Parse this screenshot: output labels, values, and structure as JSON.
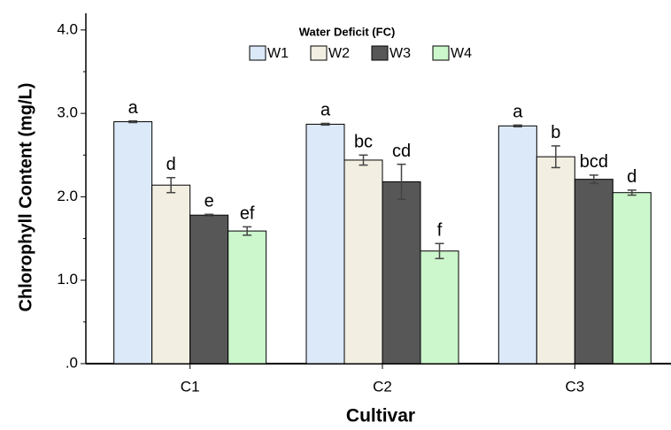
{
  "chart_data": {
    "type": "bar",
    "y_label": "Chlorophyll Content (mg/L)",
    "x_label": "Cultivar",
    "legend_title": "Water Deficit (FC)",
    "legend_position": "top",
    "categories": [
      "C1",
      "C2",
      "C3"
    ],
    "series": [
      {
        "name": "W1",
        "color": "#dbe9f9",
        "values": [
          2.9,
          2.87,
          2.85
        ],
        "errors": [
          0.01,
          0.01,
          0.01
        ],
        "letters": [
          "a",
          "a",
          "a"
        ]
      },
      {
        "name": "W2",
        "color": "#f2efe2",
        "values": [
          2.14,
          2.44,
          2.48
        ],
        "errors": [
          0.09,
          0.06,
          0.13
        ],
        "letters": [
          "d",
          "bc",
          "b"
        ]
      },
      {
        "name": "W3",
        "color": "#575757",
        "values": [
          1.78,
          2.18,
          2.21
        ],
        "errors": [
          0.01,
          0.21,
          0.05
        ],
        "letters": [
          "e",
          "cd",
          "bcd"
        ]
      },
      {
        "name": "W4",
        "color": "#ccf6cc",
        "values": [
          1.59,
          1.35,
          2.05
        ],
        "errors": [
          0.05,
          0.09,
          0.03
        ],
        "letters": [
          "ef",
          "f",
          "d"
        ]
      }
    ],
    "ylim": [
      0,
      4.2
    ],
    "yticks": [
      {
        "value": 0,
        "label": ".0"
      },
      {
        "value": 1,
        "label": "1.0"
      },
      {
        "value": 2,
        "label": "2.0"
      },
      {
        "value": 3,
        "label": "3.0"
      },
      {
        "value": 4,
        "label": "4.0"
      }
    ],
    "minor_yticks": [
      0.5,
      1.5,
      2.5,
      3.5
    ],
    "grid": false
  }
}
